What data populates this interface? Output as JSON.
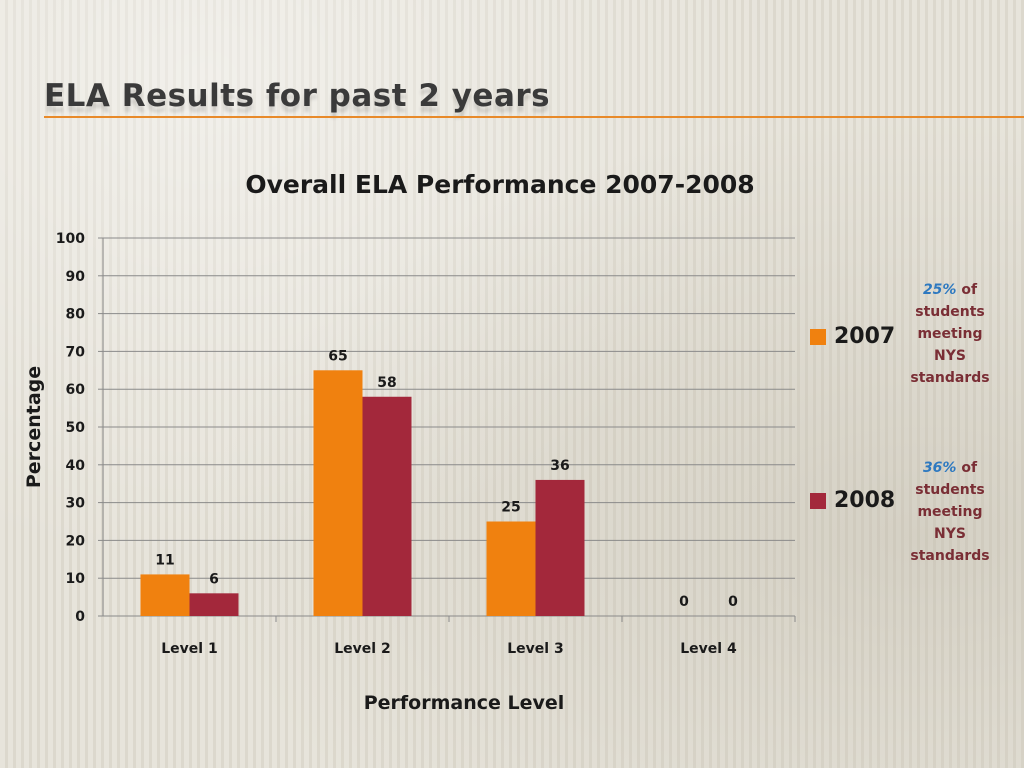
{
  "slide": {
    "title": "ELA Results for past 2 years",
    "accent_color": "#e88a2a"
  },
  "chart_data": {
    "type": "bar",
    "title": "Overall ELA Performance 2007-2008",
    "xlabel": "Performance Level",
    "ylabel": "Percentage",
    "categories": [
      "Level 1",
      "Level 2",
      "Level 3",
      "Level 4"
    ],
    "series": [
      {
        "name": "2007",
        "values": [
          11,
          65,
          25,
          0
        ],
        "color": "#f0810f"
      },
      {
        "name": "2008",
        "values": [
          6,
          58,
          36,
          0
        ],
        "color": "#a3283b"
      }
    ],
    "ylim": [
      0,
      100
    ],
    "yticks": [
      0,
      10,
      20,
      30,
      40,
      50,
      60,
      70,
      80,
      90,
      100
    ],
    "grid": true,
    "legend_position": "right",
    "data_labels": true
  },
  "notes": [
    {
      "pct": "25%",
      "text_lines": [
        "of",
        "students",
        "meeting",
        "NYS",
        "standards"
      ]
    },
    {
      "pct": "36%",
      "text_lines": [
        "of",
        "students",
        "meeting",
        "NYS",
        "standards"
      ]
    }
  ]
}
